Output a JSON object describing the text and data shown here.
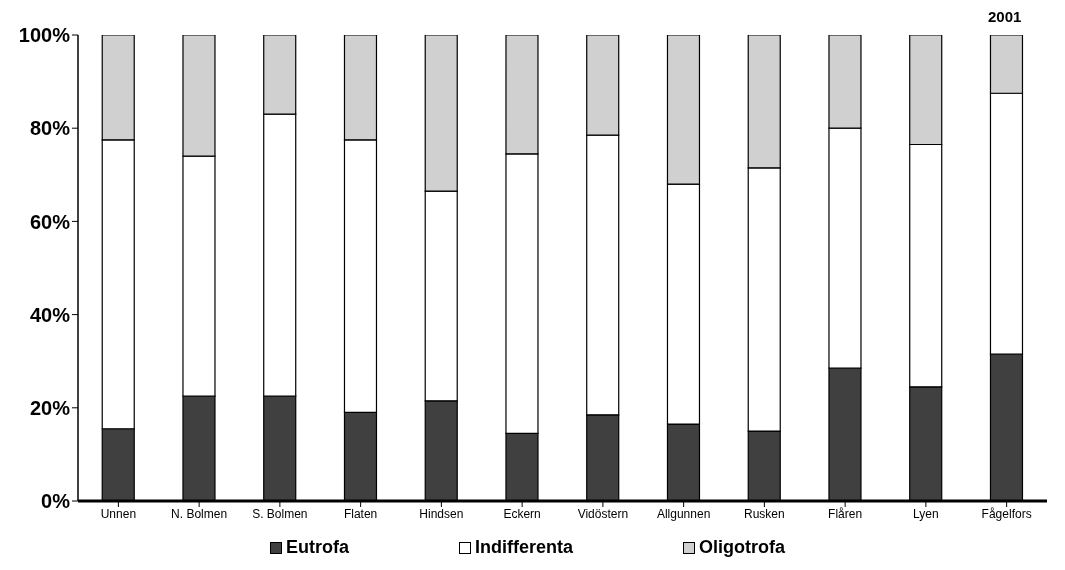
{
  "chart_data": {
    "type": "bar",
    "title": "2001",
    "stacked": true,
    "categories": [
      "Unnen",
      "N. Bolmen",
      "S. Bolmen",
      "Flaten",
      "Hindsen",
      "Eckern",
      "Vidöstern",
      "Allgunnen",
      "Rusken",
      "Flåren",
      "Lyen",
      "Fågelfors"
    ],
    "series": [
      {
        "name": "Eutrofa",
        "color": "#404040",
        "values": [
          15.5,
          22.5,
          22.5,
          19,
          21.5,
          14.5,
          18.5,
          16.5,
          15,
          28.5,
          24.5,
          31.5
        ]
      },
      {
        "name": "Indifferenta",
        "color": "#ffffff",
        "values": [
          62,
          51.5,
          60.5,
          58.5,
          45,
          60,
          60,
          51.5,
          56.5,
          51.5,
          52,
          56
        ]
      },
      {
        "name": "Oligotrofa",
        "color": "#d0d0d0",
        "values": [
          22.5,
          26,
          17,
          22.5,
          33.5,
          25.5,
          21.5,
          32,
          28.5,
          20,
          23.5,
          12.5
        ]
      }
    ],
    "ylim": [
      0,
      100
    ],
    "yticks": [
      {
        "value": 0,
        "label": "0%"
      },
      {
        "value": 20,
        "label": "20%"
      },
      {
        "value": 40,
        "label": "40%"
      },
      {
        "value": 60,
        "label": "60%"
      },
      {
        "value": 80,
        "label": "80%"
      },
      {
        "value": 100,
        "label": "100%"
      }
    ],
    "grid": false,
    "legend": "bottom"
  }
}
